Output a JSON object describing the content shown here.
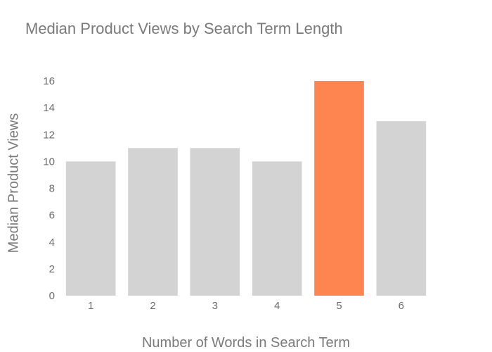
{
  "chart_data": {
    "type": "bar",
    "title": "Median Product Views by Search Term Length",
    "xlabel": "Number of Words in Search Term",
    "ylabel": "Median Product Views",
    "categories": [
      "1",
      "2",
      "3",
      "4",
      "5",
      "6"
    ],
    "values": [
      10,
      11,
      11,
      10,
      16,
      13
    ],
    "ylim": [
      0,
      16
    ],
    "yticks": [
      0,
      2,
      4,
      6,
      8,
      10,
      12,
      14,
      16
    ],
    "grid": false,
    "highlight_index": 4,
    "colors": {
      "bar": "#d3d3d3",
      "highlight": "#ff8550",
      "text": "#7a7a7a"
    }
  }
}
